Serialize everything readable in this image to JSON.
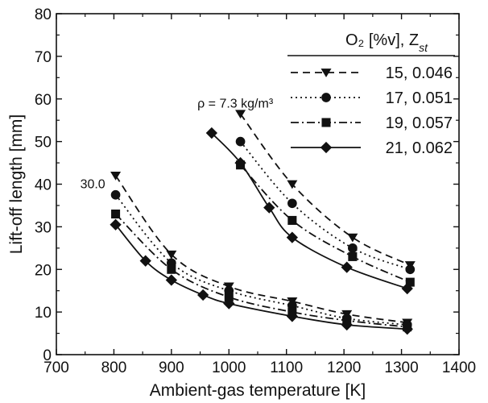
{
  "chart_data": {
    "type": "line",
    "xlabel": "Ambient-gas temperature [K]",
    "ylabel": "Lift-off length [mm]",
    "xlim": [
      700,
      1400
    ],
    "ylim": [
      0,
      80
    ],
    "xticks": [
      700,
      800,
      900,
      1000,
      1100,
      1200,
      1300,
      1400
    ],
    "yticks": [
      0,
      10,
      20,
      30,
      40,
      50,
      60,
      70,
      80
    ],
    "grid": false,
    "legend": {
      "title": "O₂ [%v], Z",
      "title_sub": "st",
      "position": "top-right"
    },
    "annotations": [
      {
        "text": "ρ = 7.3 kg/m³",
        "x": 1025,
        "y": 58
      },
      {
        "text": "30.0",
        "x": 785,
        "y": 40
      }
    ],
    "series": [
      {
        "name": "15, 0.046",
        "marker": "triangle-down",
        "dash": "9,6",
        "groups": [
          {
            "density": "30.0",
            "points": [
              [
                803,
                42
              ],
              [
                900,
                23.5
              ],
              [
                1000,
                16
              ],
              [
                1110,
                12.5
              ],
              [
                1205,
                9.5
              ],
              [
                1310,
                7.5
              ]
            ]
          },
          {
            "density": "7.3",
            "points": [
              [
                1020,
                56.5
              ],
              [
                1110,
                40
              ],
              [
                1215,
                27.5
              ],
              [
                1315,
                21
              ]
            ]
          }
        ]
      },
      {
        "name": "17, 0.051",
        "marker": "circle",
        "dash": "2,4",
        "groups": [
          {
            "density": "30.0",
            "points": [
              [
                803,
                37.5
              ],
              [
                900,
                21.5
              ],
              [
                1000,
                15
              ],
              [
                1110,
                11.5
              ],
              [
                1205,
                8.5
              ],
              [
                1310,
                7
              ]
            ]
          },
          {
            "density": "7.3",
            "points": [
              [
                1020,
                50
              ],
              [
                1110,
                35.5
              ],
              [
                1215,
                25
              ],
              [
                1315,
                20
              ]
            ]
          }
        ]
      },
      {
        "name": "19, 0.057",
        "marker": "square",
        "dash": "10,4,2,4",
        "groups": [
          {
            "density": "30.0",
            "points": [
              [
                803,
                33
              ],
              [
                900,
                20
              ],
              [
                1000,
                13.5
              ],
              [
                1110,
                10
              ],
              [
                1205,
                8
              ],
              [
                1310,
                6.5
              ]
            ]
          },
          {
            "density": "7.3",
            "points": [
              [
                1020,
                44.5
              ],
              [
                1110,
                31.5
              ],
              [
                1215,
                23
              ],
              [
                1315,
                17
              ]
            ]
          }
        ]
      },
      {
        "name": "21, 0.062",
        "marker": "diamond",
        "dash": "",
        "groups": [
          {
            "density": "30.0",
            "points": [
              [
                803,
                30.5
              ],
              [
                855,
                22
              ],
              [
                900,
                17.5
              ],
              [
                955,
                14
              ],
              [
                1000,
                12
              ],
              [
                1110,
                9
              ],
              [
                1205,
                7
              ],
              [
                1310,
                6
              ]
            ]
          },
          {
            "density": "7.3",
            "points": [
              [
                970,
                52
              ],
              [
                1020,
                45
              ],
              [
                1070,
                34.5
              ],
              [
                1110,
                27.5
              ],
              [
                1205,
                20.5
              ],
              [
                1310,
                15.5
              ]
            ]
          }
        ]
      }
    ]
  }
}
